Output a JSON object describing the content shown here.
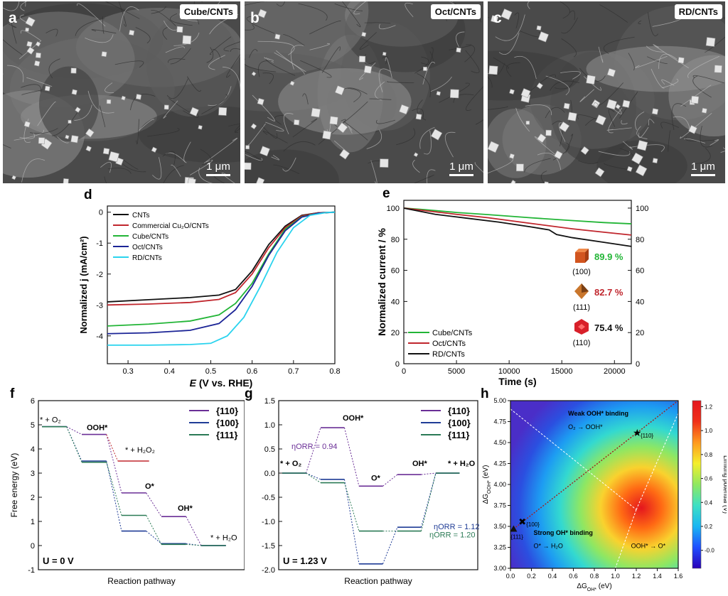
{
  "sem_panels": [
    {
      "label": "a",
      "tag": "Cube/CNTs",
      "scale": "1 μm"
    },
    {
      "label": "b",
      "tag": "Oct/CNTs",
      "scale": "1 μm"
    },
    {
      "label": "c",
      "tag": "RD/CNTs",
      "scale": "1 μm"
    }
  ],
  "colors": {
    "black": "#111111",
    "red": "#c0262d",
    "green": "#22b536",
    "navy": "#1b2496",
    "cyan": "#2ad3ee",
    "purple": "#6a2e96",
    "blue2": "#1f3c96",
    "teal": "#2a7a55"
  },
  "chart_data": [
    {
      "panel": "d",
      "type": "line",
      "xlabel_prefix": "E",
      "xlabel_rest": " (V vs. RHE)",
      "ylabel": "Normalized j (mA/cm²)",
      "xlim": [
        0.25,
        0.8
      ],
      "ylim": [
        -4.9,
        0.2
      ],
      "xticks": [
        "0.3",
        "0.4",
        "0.5",
        "0.6",
        "0.7",
        "0.8"
      ],
      "yticks": [
        "0",
        "-1",
        "-2",
        "-3",
        "-4"
      ],
      "series": [
        {
          "name": "CNTs",
          "color": "#111111",
          "points": [
            [
              0.25,
              -2.9
            ],
            [
              0.35,
              -2.83
            ],
            [
              0.45,
              -2.76
            ],
            [
              0.52,
              -2.68
            ],
            [
              0.56,
              -2.5
            ],
            [
              0.6,
              -1.9
            ],
            [
              0.64,
              -1.05
            ],
            [
              0.68,
              -0.45
            ],
            [
              0.72,
              -0.1
            ],
            [
              0.76,
              -0.02
            ],
            [
              0.8,
              0
            ]
          ]
        },
        {
          "name": "Commercial Cu₂O/CNTs",
          "color": "#c0262d",
          "points": [
            [
              0.25,
              -3.0
            ],
            [
              0.35,
              -2.97
            ],
            [
              0.45,
              -2.92
            ],
            [
              0.52,
              -2.82
            ],
            [
              0.56,
              -2.6
            ],
            [
              0.6,
              -2.0
            ],
            [
              0.64,
              -1.15
            ],
            [
              0.68,
              -0.5
            ],
            [
              0.72,
              -0.12
            ],
            [
              0.76,
              -0.02
            ],
            [
              0.8,
              0
            ]
          ]
        },
        {
          "name": "Cube/CNTs",
          "color": "#22b536",
          "points": [
            [
              0.25,
              -3.68
            ],
            [
              0.35,
              -3.62
            ],
            [
              0.45,
              -3.52
            ],
            [
              0.52,
              -3.32
            ],
            [
              0.56,
              -2.95
            ],
            [
              0.6,
              -2.3
            ],
            [
              0.64,
              -1.35
            ],
            [
              0.68,
              -0.55
            ],
            [
              0.72,
              -0.15
            ],
            [
              0.76,
              -0.03
            ],
            [
              0.8,
              0
            ]
          ]
        },
        {
          "name": "Oct/CNTs",
          "color": "#1b2496",
          "points": [
            [
              0.25,
              -3.93
            ],
            [
              0.35,
              -3.9
            ],
            [
              0.45,
              -3.82
            ],
            [
              0.52,
              -3.6
            ],
            [
              0.56,
              -3.15
            ],
            [
              0.6,
              -2.4
            ],
            [
              0.64,
              -1.4
            ],
            [
              0.68,
              -0.6
            ],
            [
              0.72,
              -0.16
            ],
            [
              0.76,
              -0.03
            ],
            [
              0.8,
              0
            ]
          ]
        },
        {
          "name": "RD/CNTs",
          "color": "#2ad3ee",
          "points": [
            [
              0.25,
              -4.3
            ],
            [
              0.35,
              -4.3
            ],
            [
              0.45,
              -4.28
            ],
            [
              0.5,
              -4.24
            ],
            [
              0.54,
              -4.0
            ],
            [
              0.58,
              -3.4
            ],
            [
              0.62,
              -2.4
            ],
            [
              0.66,
              -1.3
            ],
            [
              0.7,
              -0.5
            ],
            [
              0.74,
              -0.1
            ],
            [
              0.78,
              -0.01
            ],
            [
              0.8,
              0
            ]
          ]
        }
      ]
    },
    {
      "panel": "e",
      "type": "line",
      "xlabel": "Time (s)",
      "ylabel": "Normalized current / %",
      "xlim": [
        0,
        21600
      ],
      "ylim": [
        0,
        105
      ],
      "xticks": [
        "0",
        "5000",
        "10000",
        "15000",
        "20000"
      ],
      "yticks": [
        "0",
        "20",
        "40",
        "60",
        "80",
        "100"
      ],
      "rticks": [
        "0",
        "20",
        "40",
        "60",
        "80",
        "100"
      ],
      "series": [
        {
          "name": "Cube/CNTs",
          "color": "#22b536",
          "points": [
            [
              0,
              100
            ],
            [
              2000,
              99
            ],
            [
              5000,
              97.2
            ],
            [
              8000,
              95.8
            ],
            [
              12000,
              93.8
            ],
            [
              16000,
              92
            ],
            [
              19000,
              90.7
            ],
            [
              21600,
              89.9
            ]
          ]
        },
        {
          "name": "Oct/CNTs",
          "color": "#c0262d",
          "points": [
            [
              0,
              100
            ],
            [
              2000,
              98.4
            ],
            [
              5000,
              96
            ],
            [
              8000,
              93.8
            ],
            [
              12000,
              90.2
            ],
            [
              16000,
              86.7
            ],
            [
              19000,
              84.5
            ],
            [
              21600,
              82.7
            ]
          ]
        },
        {
          "name": "RD/CNTs",
          "color": "#111111",
          "points": [
            [
              0,
              100
            ],
            [
              1500,
              98
            ],
            [
              3000,
              96
            ],
            [
              6000,
              93.5
            ],
            [
              9000,
              91
            ],
            [
              12000,
              88
            ],
            [
              13800,
              86
            ],
            [
              14500,
              83
            ],
            [
              16000,
              81
            ],
            [
              19000,
              78
            ],
            [
              21600,
              75.4
            ]
          ]
        }
      ],
      "retention": [
        {
          "facet": "(100)",
          "value": "89.9 %",
          "color": "#22b536",
          "shape": "cube"
        },
        {
          "facet": "(111)",
          "value": "82.7 %",
          "color": "#c0262d",
          "shape": "octahedron"
        },
        {
          "facet": "(110)",
          "value": "75.4 %",
          "color": "#111111",
          "shape": "rhombic-dodecahedron"
        }
      ]
    },
    {
      "panel": "f",
      "type": "line",
      "xlabel": "Reaction pathway",
      "ylabel": "Free energy (eV)",
      "ylim": [
        -1,
        6
      ],
      "yticks": [
        "-1",
        "0",
        "1",
        "2",
        "3",
        "4",
        "5",
        "6"
      ],
      "condition": "U = 0 V",
      "state_labels": [
        "* + O₂",
        "OOH*",
        "* + H₂O₂",
        "O*",
        "OH*",
        "* + H₂O"
      ],
      "series": [
        {
          "name": "{110}",
          "color": "#6a2e96",
          "levels": [
            4.92,
            4.6,
            2.18,
            1.2,
            0.0
          ]
        },
        {
          "name": "{100}",
          "color": "#1f3c96",
          "levels": [
            4.92,
            3.5,
            0.6,
            0.08,
            0.0
          ]
        },
        {
          "name": "{111}",
          "color": "#2a7a55",
          "levels": [
            4.92,
            3.45,
            1.25,
            0.05,
            0.0
          ]
        }
      ],
      "h2o2": {
        "level": 3.5,
        "color": "#c0262d"
      }
    },
    {
      "panel": "g",
      "type": "line",
      "xlabel": "Reaction pathway",
      "ylim": [
        -2,
        1.5
      ],
      "yticks": [
        "-2.0",
        "-1.5",
        "-1.0",
        "-0.5",
        "0.0",
        "0.5",
        "1.0",
        "1.5"
      ],
      "condition": "U = 1.23 V",
      "state_labels": [
        "* + O₂",
        "OOH*",
        "O*",
        "OH*",
        "* + H₂O"
      ],
      "annotations": [
        "ηORR = 0.94",
        "ηORR = 1.12",
        "ηORR = 1.20"
      ],
      "series": [
        {
          "name": "{110}",
          "color": "#6a2e96",
          "levels": [
            0.0,
            0.94,
            -0.27,
            -0.03,
            0.0
          ]
        },
        {
          "name": "{100}",
          "color": "#1f3c96",
          "levels": [
            0.0,
            -0.13,
            -1.88,
            -1.12,
            0.0
          ]
        },
        {
          "name": "{111}",
          "color": "#2a7a55",
          "levels": [
            0.0,
            -0.2,
            -1.2,
            -1.2,
            0.0
          ]
        }
      ]
    },
    {
      "panel": "h",
      "type": "heatmap",
      "xlabel": "ΔG_OH* (eV)",
      "ylabel": "ΔG_OOH* (eV)",
      "colorbar_label": "Limiting potential (V)",
      "xlim": [
        0,
        1.6
      ],
      "ylim": [
        3.0,
        5.0
      ],
      "xticks": [
        "0.0",
        "0.2",
        "0.4",
        "0.6",
        "0.8",
        "1.0",
        "1.2",
        "1.4",
        "1.6"
      ],
      "yticks": [
        "3.00",
        "3.25",
        "3.50",
        "3.75",
        "4.00",
        "4.25",
        "4.50",
        "4.75",
        "5.00"
      ],
      "cticks": [
        "-0.0",
        "0.2",
        "0.4",
        "0.6",
        "0.8",
        "1.0",
        "1.2"
      ],
      "clim": [
        -0.15,
        1.25
      ],
      "regions": [
        "Weak OOH* binding",
        "O₂ → OOH*",
        "Strong OH* binding",
        "O* → H₂O",
        "OOH* → O*"
      ],
      "points": [
        {
          "label": "{110}",
          "x": 1.2,
          "y": 4.62,
          "marker": "star"
        },
        {
          "label": "{100}",
          "x": 0.11,
          "y": 3.56,
          "marker": "x"
        },
        {
          "label": "{111}",
          "x": 0.03,
          "y": 3.47,
          "marker": "triangle"
        }
      ]
    }
  ]
}
